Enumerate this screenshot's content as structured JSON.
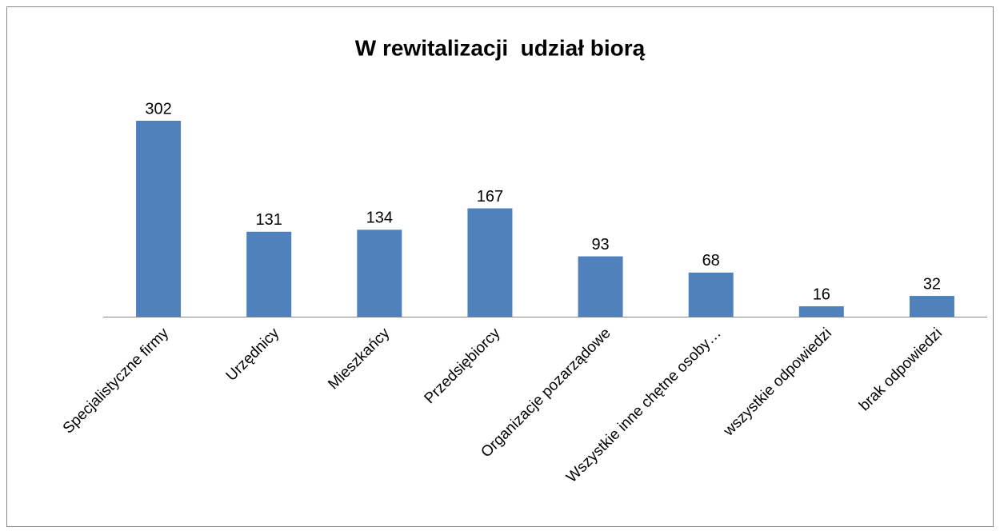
{
  "chart_data": {
    "type": "bar",
    "title": "W rewitalizacji  udział biorą",
    "categories": [
      "Specjalistyczne firmy",
      "Urzędnicy",
      "Mieszkańcy",
      "Przedsiębiorcy",
      "Organizacje pozarządowe",
      "Wszystkie inne chętne osoby…",
      "wszystkie odpowiedzi",
      "brak odpowiedzi"
    ],
    "values": [
      302,
      131,
      134,
      167,
      93,
      68,
      16,
      32
    ],
    "color": "#4f81bd"
  }
}
